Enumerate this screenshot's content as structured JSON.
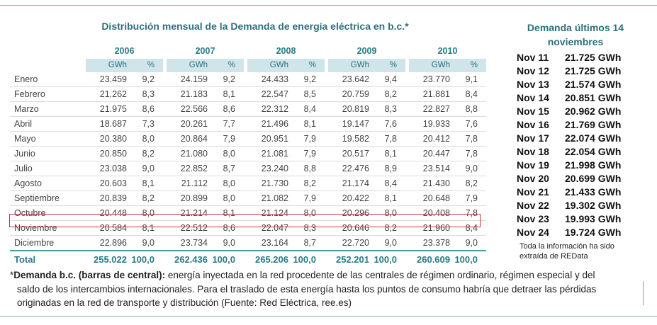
{
  "title": "Distribución mensual de la Demanda de energía eléctrica en b.c.*",
  "table": {
    "years": [
      "2006",
      "2007",
      "2008",
      "2009",
      "2010"
    ],
    "unit_label": "GWh",
    "pct_label": "%",
    "rows": [
      {
        "month": "Enero",
        "cells": [
          [
            "23.459",
            "9,2"
          ],
          [
            "24.159",
            "9,2"
          ],
          [
            "24.433",
            "9,2"
          ],
          [
            "23.642",
            "9,4"
          ],
          [
            "23.770",
            "9,1"
          ]
        ]
      },
      {
        "month": "Febrero",
        "cells": [
          [
            "21.262",
            "8,3"
          ],
          [
            "21.183",
            "8,1"
          ],
          [
            "22.547",
            "8,5"
          ],
          [
            "20.759",
            "8,2"
          ],
          [
            "21.881",
            "8,4"
          ]
        ]
      },
      {
        "month": "Marzo",
        "cells": [
          [
            "21.975",
            "8,6"
          ],
          [
            "22.566",
            "8,6"
          ],
          [
            "22.312",
            "8,4"
          ],
          [
            "20.819",
            "8,3"
          ],
          [
            "22.827",
            "8,8"
          ]
        ]
      },
      {
        "month": "Abril",
        "cells": [
          [
            "18.687",
            "7,3"
          ],
          [
            "20.261",
            "7,7"
          ],
          [
            "21.496",
            "8,1"
          ],
          [
            "19.147",
            "7,6"
          ],
          [
            "19.933",
            "7,6"
          ]
        ]
      },
      {
        "month": "Mayo",
        "cells": [
          [
            "20.380",
            "8,0"
          ],
          [
            "20.864",
            "7,9"
          ],
          [
            "20.951",
            "7,9"
          ],
          [
            "19.582",
            "7,8"
          ],
          [
            "20.412",
            "7,8"
          ]
        ]
      },
      {
        "month": "Junio",
        "cells": [
          [
            "20.850",
            "8,2"
          ],
          [
            "21.080",
            "8,0"
          ],
          [
            "21.081",
            "7,9"
          ],
          [
            "20.517",
            "8,1"
          ],
          [
            "20.447",
            "7,8"
          ]
        ]
      },
      {
        "month": "Julio",
        "cells": [
          [
            "23.038",
            "9,0"
          ],
          [
            "22.852",
            "8,7"
          ],
          [
            "23.240",
            "8,8"
          ],
          [
            "22.476",
            "8,9"
          ],
          [
            "23.514",
            "9,0"
          ]
        ]
      },
      {
        "month": "Agosto",
        "cells": [
          [
            "20.603",
            "8,1"
          ],
          [
            "21.112",
            "8,0"
          ],
          [
            "21.730",
            "8,2"
          ],
          [
            "21.174",
            "8,4"
          ],
          [
            "21.430",
            "8,2"
          ]
        ]
      },
      {
        "month": "Septiembre",
        "cells": [
          [
            "20.839",
            "8,2"
          ],
          [
            "20.899",
            "8,0"
          ],
          [
            "21.082",
            "7,9"
          ],
          [
            "20.422",
            "8,1"
          ],
          [
            "20.648",
            "7,9"
          ]
        ]
      },
      {
        "month": "Octubre",
        "cells": [
          [
            "20.448",
            "8,0"
          ],
          [
            "21.214",
            "8,1"
          ],
          [
            "21.124",
            "8,0"
          ],
          [
            "20.296",
            "8,0"
          ],
          [
            "20.408",
            "7,8"
          ]
        ]
      },
      {
        "month": "Noviembre",
        "cells": [
          [
            "20.584",
            "8,1"
          ],
          [
            "22.512",
            "8,6"
          ],
          [
            "22.047",
            "8,3"
          ],
          [
            "20.646",
            "8,2"
          ],
          [
            "21.960",
            "8,4"
          ]
        ]
      },
      {
        "month": "Diciembre",
        "cells": [
          [
            "22.896",
            "9,0"
          ],
          [
            "23.734",
            "9,0"
          ],
          [
            "23.164",
            "8,7"
          ],
          [
            "22.720",
            "9,0"
          ],
          [
            "23.378",
            "9,0"
          ]
        ]
      }
    ],
    "total": {
      "month": "Total",
      "cells": [
        [
          "255.022",
          "100,0"
        ],
        [
          "262.436",
          "100,0"
        ],
        [
          "265.206",
          "100,0"
        ],
        [
          "252.201",
          "100,0"
        ],
        [
          "260.609",
          "100,0"
        ]
      ]
    }
  },
  "side": {
    "title": "Demanda últimos 14 noviembres",
    "rows": [
      {
        "day": "Nov 11",
        "value": "21.725 GWh"
      },
      {
        "day": "Nov 12",
        "value": "21.725 GWh"
      },
      {
        "day": "Nov 13",
        "value": "21.574 GWh"
      },
      {
        "day": "Nov 14",
        "value": "20.851 GWh"
      },
      {
        "day": "Nov 15",
        "value": "20.962 GWh"
      },
      {
        "day": "Nov 16",
        "value": "21.769 GWh"
      },
      {
        "day": "Nov 17",
        "value": "22.074 GWh"
      },
      {
        "day": "Nov 18",
        "value": "22.054 GWh"
      },
      {
        "day": "Nov 19",
        "value": "21.998 GWh"
      },
      {
        "day": "Nov 20",
        "value": "20.699 GWh"
      },
      {
        "day": "Nov 21",
        "value": "21.433 GWh"
      },
      {
        "day": "Nov 22",
        "value": "19.302 GWh"
      },
      {
        "day": "Nov 23",
        "value": "19.993 GWh"
      },
      {
        "day": "Nov 24",
        "value": "19.724 GWh"
      }
    ],
    "note": "Toda la información ha sido extraída de REData"
  },
  "footnote": {
    "marker": "*",
    "term": "Demanda b.c. (barras de central):",
    "line1": " energía inyectada en la red procedente de las centrales de régimen ordinario, régimen especial y del",
    "line2": "saldo de los intercambios internacionales. Para el traslado de esta energía hasta los puntos de consumo habría que detraer las pérdidas",
    "line3": "originadas en la red de transporte y distribución (Fuente: Red Eléctrica, ree.es)"
  }
}
